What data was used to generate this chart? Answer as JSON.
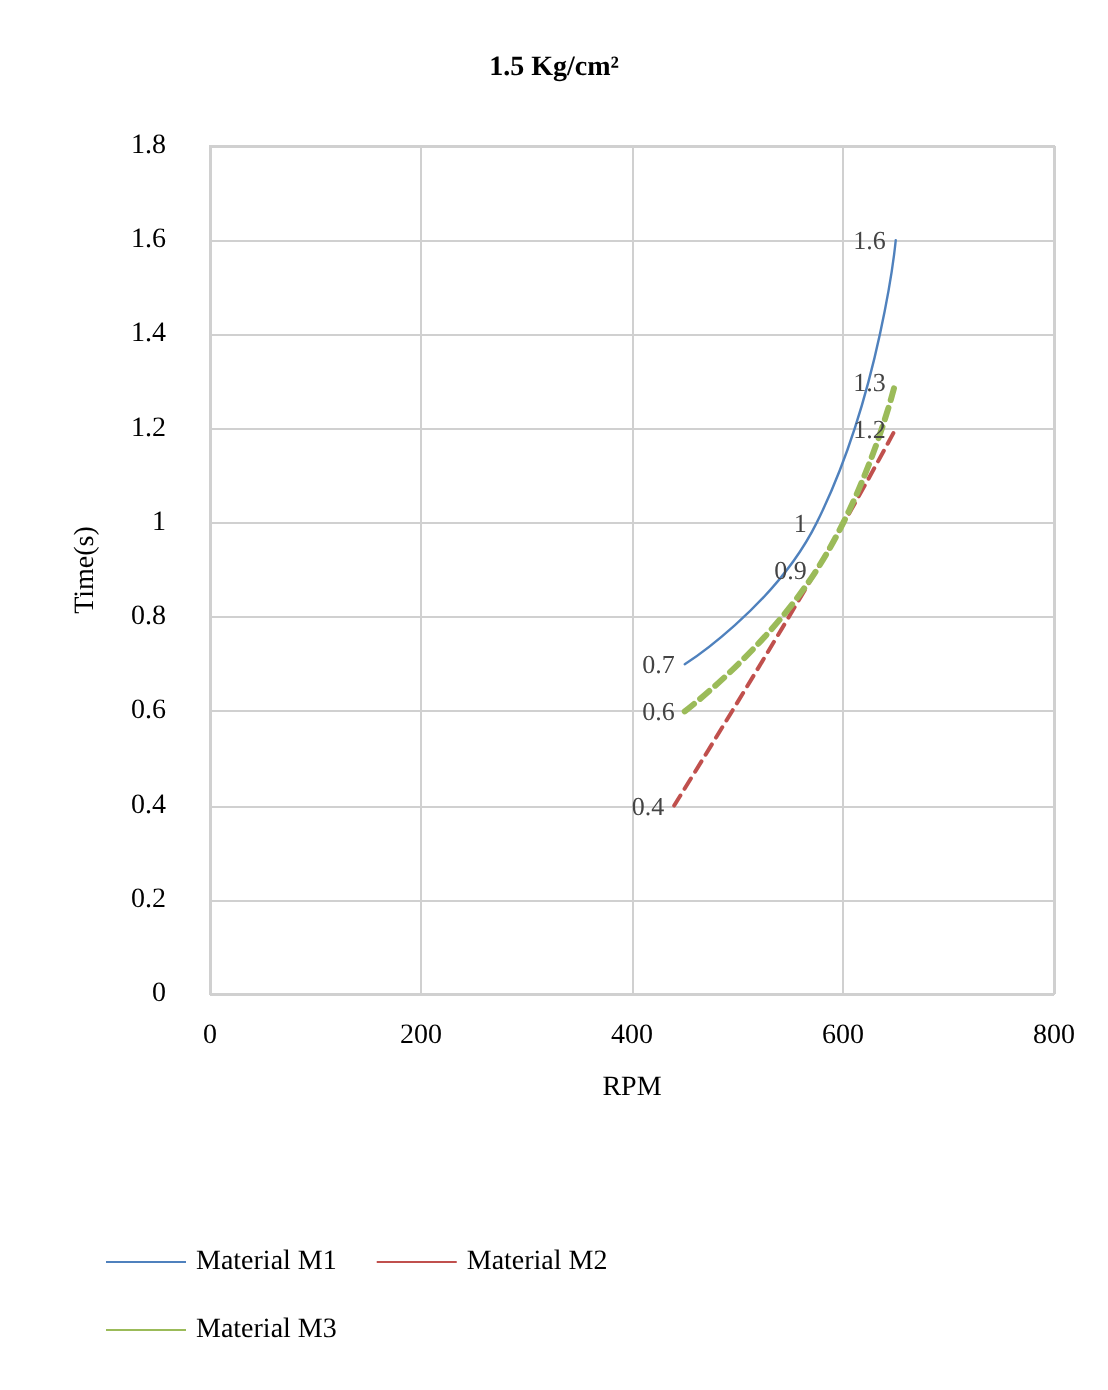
{
  "chart_data": {
    "type": "line",
    "title": "1.5 Kg/cm²",
    "xlabel": "RPM",
    "ylabel": "Time(s)",
    "xlim": [
      0,
      800
    ],
    "xticks": [
      0,
      200,
      400,
      600,
      800
    ],
    "ylim": [
      0,
      1.8
    ],
    "yticks": [
      0,
      0.2,
      0.4,
      0.6,
      0.8,
      1,
      1.2,
      1.4,
      1.6,
      1.8
    ],
    "grid": true,
    "legend": "bottom",
    "marker": "none",
    "series": [
      {
        "name": "Material M1",
        "color": "#4f81bd",
        "line_style": "solid",
        "x": [
          450,
          575,
          650
        ],
        "values": [
          0.7,
          1,
          1.6
        ],
        "value_labels": [
          "0.7",
          "1",
          "1.6"
        ]
      },
      {
        "name": "Material M2",
        "color": "#c0504d",
        "line_style": "dashed",
        "x": [
          440,
          575,
          650
        ],
        "values": [
          0.4,
          0.9,
          1.2
        ],
        "value_labels": [
          "0.4",
          "0.9",
          "1.2"
        ]
      },
      {
        "name": "Material M3",
        "color": "#9bbb59",
        "line_style": "dashed",
        "x": [
          450,
          575,
          650
        ],
        "values": [
          0.6,
          0.9,
          1.3
        ],
        "value_labels": [
          "0.6",
          null,
          "1.3"
        ]
      }
    ]
  }
}
